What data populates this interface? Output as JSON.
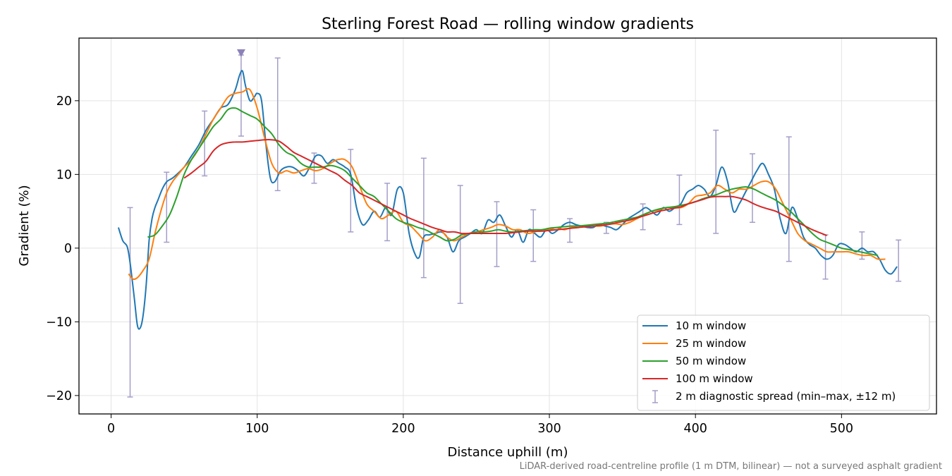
{
  "chart_data": {
    "type": "line",
    "title": "Sterling Forest Road — rolling window gradients",
    "xlabel": "Distance uphill (m)",
    "ylabel": "Gradient (%)",
    "xlim": [
      -22,
      565
    ],
    "ylim": [
      -22.5,
      28.5
    ],
    "xticks": [
      0,
      100,
      200,
      300,
      400,
      500
    ],
    "yticks": [
      -20,
      -10,
      0,
      10,
      20
    ],
    "grid": true,
    "legend_position": "lower-right",
    "footnote": "LiDAR-derived road-centreline profile (1 m DTM, bilinear) — not a surveyed asphalt gradient",
    "series": [
      {
        "name": "10 m window",
        "color": "#1f77b4",
        "x": [
          5,
          8,
          11,
          13,
          16,
          18,
          20,
          22,
          24,
          26,
          28,
          30,
          32,
          35,
          38,
          42,
          46,
          50,
          55,
          60,
          65,
          70,
          75,
          80,
          85,
          88,
          90,
          92,
          95,
          98,
          100,
          103,
          106,
          109,
          112,
          116,
          120,
          124,
          128,
          132,
          136,
          140,
          144,
          148,
          152,
          156,
          160,
          164,
          168,
          172,
          176,
          180,
          184,
          188,
          192,
          196,
          200,
          204,
          208,
          211,
          214,
          218,
          222,
          226,
          230,
          234,
          238,
          242,
          246,
          250,
          254,
          258,
          262,
          266,
          270,
          274,
          278,
          282,
          286,
          290,
          294,
          298,
          302,
          306,
          310,
          314,
          318,
          322,
          326,
          330,
          334,
          338,
          342,
          346,
          350,
          354,
          358,
          362,
          366,
          370,
          374,
          378,
          382,
          386,
          390,
          394,
          398,
          402,
          406,
          410,
          414,
          418,
          422,
          426,
          430,
          434,
          438,
          442,
          446,
          450,
          454,
          458,
          462,
          466,
          470,
          474,
          478,
          482,
          486,
          490,
          494,
          498,
          502,
          506,
          510,
          514,
          518,
          522,
          526,
          530,
          534,
          538
        ],
        "values": [
          2.8,
          1,
          0.2,
          -2,
          -7,
          -10.5,
          -10.8,
          -9,
          -5,
          1,
          4,
          5.5,
          6.5,
          8,
          9,
          9.5,
          10.2,
          11,
          12.5,
          14,
          16,
          17.5,
          19,
          19.5,
          21.5,
          23.5,
          24,
          22,
          20,
          20.5,
          21,
          20,
          14,
          9.5,
          9,
          10.5,
          11,
          11,
          10.5,
          9.8,
          11,
          12.5,
          12.5,
          11.5,
          12,
          11.5,
          11,
          10,
          5.5,
          3.2,
          3.8,
          5,
          4.2,
          5.5,
          4.5,
          8,
          7.5,
          2,
          -0.8,
          -1.2,
          1.5,
          1.8,
          2,
          2.2,
          1.5,
          -0.5,
          1,
          1.5,
          2,
          2.5,
          2,
          3.8,
          3.5,
          4.5,
          3,
          1.5,
          2.5,
          0.8,
          2.5,
          2,
          1.5,
          2.5,
          2,
          2.5,
          3.2,
          3.5,
          3.2,
          3,
          2.8,
          2.8,
          3.2,
          3,
          2.8,
          2.5,
          3.2,
          4,
          4.5,
          5,
          5.5,
          5,
          4.5,
          5.5,
          5,
          5.5,
          6,
          7.5,
          8,
          8.5,
          8,
          7,
          8.5,
          11,
          9,
          5,
          6,
          7.5,
          9,
          10.5,
          11.5,
          10,
          8,
          4,
          2,
          5.5,
          4,
          1.5,
          0.5,
          0,
          -1,
          -1.5,
          -1,
          0.5,
          0.5,
          0,
          -0.5,
          0,
          -0.5,
          -0.5,
          -1.5,
          -3,
          -3.5,
          -2.5
        ]
      },
      {
        "name": "25 m window",
        "color": "#ff7f0e",
        "x": [
          12,
          15,
          18,
          22,
          26,
          30,
          34,
          38,
          42,
          46,
          50,
          55,
          60,
          65,
          70,
          75,
          80,
          85,
          90,
          95,
          100,
          105,
          110,
          115,
          120,
          125,
          130,
          135,
          140,
          145,
          150,
          155,
          160,
          165,
          170,
          175,
          180,
          185,
          190,
          195,
          200,
          205,
          210,
          215,
          220,
          225,
          230,
          235,
          240,
          245,
          250,
          255,
          260,
          265,
          270,
          275,
          280,
          285,
          290,
          295,
          300,
          305,
          310,
          315,
          320,
          325,
          330,
          335,
          340,
          345,
          350,
          355,
          360,
          365,
          370,
          375,
          380,
          385,
          390,
          395,
          400,
          405,
          410,
          415,
          420,
          425,
          430,
          435,
          440,
          445,
          450,
          455,
          460,
          465,
          470,
          475,
          480,
          485,
          490,
          495,
          500,
          505,
          510,
          515,
          520,
          525,
          530
        ],
        "values": [
          -3.5,
          -4.2,
          -4,
          -3,
          -1.5,
          2,
          5,
          7.5,
          9,
          10,
          11,
          12,
          13.5,
          15.5,
          17.5,
          19,
          20.5,
          21,
          21.2,
          21.5,
          19,
          15,
          11.5,
          10.2,
          10.5,
          10.2,
          10.5,
          10.8,
          10.5,
          10.8,
          11.5,
          12,
          12,
          11,
          8.5,
          6,
          5,
          4,
          4.5,
          5,
          3.5,
          3,
          2,
          1,
          1.5,
          2.5,
          1.5,
          1,
          1.5,
          2,
          2.2,
          2.5,
          2.8,
          3.2,
          3,
          2.5,
          2.5,
          2,
          2.2,
          2.5,
          2.5,
          2.8,
          2.5,
          2.8,
          3,
          3,
          3,
          3,
          3.2,
          3.3,
          3.2,
          3.5,
          4,
          4.5,
          5,
          5.2,
          5.5,
          5.5,
          5.5,
          6,
          7,
          7.2,
          7.5,
          8.5,
          8,
          7.5,
          8,
          8,
          8.5,
          9,
          9,
          8,
          6,
          4,
          2,
          1,
          0.5,
          0,
          -0.5,
          -0.5,
          -0.5,
          -0.5,
          -0.8,
          -1,
          -1,
          -1.5,
          -1.5
        ]
      },
      {
        "name": "50 m window",
        "color": "#2ca02c",
        "x": [
          25,
          30,
          35,
          40,
          45,
          50,
          55,
          60,
          65,
          70,
          75,
          80,
          85,
          90,
          95,
          100,
          105,
          110,
          115,
          120,
          125,
          130,
          135,
          140,
          145,
          150,
          155,
          160,
          165,
          170,
          175,
          180,
          185,
          190,
          195,
          200,
          205,
          210,
          215,
          220,
          225,
          230,
          235,
          240,
          245,
          250,
          255,
          260,
          265,
          270,
          275,
          280,
          285,
          290,
          295,
          300,
          305,
          310,
          315,
          320,
          325,
          330,
          335,
          340,
          345,
          350,
          355,
          360,
          365,
          370,
          375,
          380,
          385,
          390,
          395,
          400,
          405,
          410,
          415,
          420,
          425,
          430,
          435,
          440,
          445,
          450,
          455,
          460,
          465,
          470,
          475,
          480,
          485,
          490,
          495,
          500,
          505,
          510,
          515,
          520,
          525
        ],
        "values": [
          1.5,
          1.8,
          3,
          4.5,
          7,
          10,
          12,
          13.5,
          15,
          16.5,
          17.5,
          18.8,
          19,
          18.5,
          18,
          17.5,
          16.5,
          15.5,
          14,
          13,
          12.5,
          11.5,
          11,
          11,
          11,
          11.2,
          11,
          10.5,
          9.5,
          8.5,
          7.5,
          7,
          6,
          5,
          4,
          3.5,
          3.2,
          2.8,
          2.5,
          2,
          1.5,
          1,
          1.2,
          1.8,
          2,
          2.2,
          2.2,
          2.3,
          2.5,
          2.3,
          2.2,
          2.3,
          2.4,
          2.5,
          2.5,
          2.7,
          2.8,
          2.9,
          3,
          3,
          3.1,
          3.2,
          3.3,
          3.4,
          3.6,
          3.8,
          4,
          4.2,
          4.6,
          5,
          5.3,
          5.5,
          5.6,
          5.8,
          6,
          6.3,
          6.7,
          7,
          7.3,
          7.7,
          8,
          8.2,
          8.3,
          8,
          7.5,
          7,
          6.5,
          5.8,
          5,
          4,
          3,
          2,
          1.2,
          0.8,
          0.4,
          0,
          -0.2,
          -0.4,
          -0.6,
          -0.8,
          -1
        ]
      },
      {
        "name": "100 m window",
        "color": "#d62728",
        "x": [
          50,
          55,
          60,
          65,
          70,
          75,
          80,
          85,
          90,
          95,
          100,
          105,
          110,
          115,
          120,
          125,
          130,
          135,
          140,
          145,
          150,
          155,
          160,
          165,
          170,
          175,
          180,
          185,
          190,
          195,
          200,
          205,
          210,
          215,
          220,
          225,
          230,
          235,
          240,
          245,
          250,
          255,
          260,
          265,
          270,
          275,
          280,
          285,
          290,
          295,
          300,
          305,
          310,
          315,
          320,
          325,
          330,
          335,
          340,
          345,
          350,
          355,
          360,
          365,
          370,
          375,
          380,
          385,
          390,
          395,
          400,
          405,
          410,
          415,
          420,
          425,
          430,
          435,
          440,
          445,
          450,
          455,
          460,
          465,
          470,
          475,
          480,
          485,
          490
        ],
        "values": [
          9.5,
          10.2,
          11,
          11.8,
          13.2,
          14,
          14.3,
          14.4,
          14.4,
          14.5,
          14.6,
          14.7,
          14.7,
          14.5,
          13.8,
          13,
          12.5,
          12,
          11.5,
          11,
          10.5,
          10,
          9.2,
          8.5,
          7.5,
          7,
          6.5,
          6,
          5.5,
          5,
          4.5,
          4,
          3.6,
          3.2,
          2.8,
          2.5,
          2.2,
          2.2,
          2,
          2,
          2,
          2,
          2,
          2,
          2,
          2.1,
          2.2,
          2.3,
          2.3,
          2.3,
          2.4,
          2.5,
          2.6,
          2.7,
          2.8,
          2.9,
          3,
          3.1,
          3.2,
          3.4,
          3.6,
          3.8,
          4.1,
          4.4,
          4.7,
          5,
          5.2,
          5.4,
          5.6,
          6,
          6.3,
          6.6,
          6.9,
          7,
          7,
          7,
          6.8,
          6.5,
          6,
          5.6,
          5.3,
          5,
          4.5,
          4,
          3.5,
          3,
          2.5,
          2.1,
          1.7
        ]
      }
    ],
    "error_bars": {
      "name": "2 m diagnostic spread (min–max, ±12 m)",
      "color": "#a39ec9",
      "x": [
        13,
        38,
        64,
        89,
        114,
        139,
        164,
        189,
        214,
        239,
        264,
        289,
        314,
        339,
        364,
        389,
        414,
        439,
        464,
        489,
        514,
        539
      ],
      "low": [
        -20.2,
        0.8,
        9.8,
        15.2,
        7.8,
        8.8,
        2.2,
        1,
        -4,
        -7.5,
        -2.5,
        -1.8,
        0.8,
        2,
        2.5,
        3.2,
        2,
        3.5,
        -1.8,
        -4.2,
        -1.5,
        -4.5
      ],
      "high": [
        5.5,
        10.3,
        18.6,
        26.2,
        25.8,
        12.9,
        13.4,
        8.8,
        12.2,
        8.5,
        6.3,
        5.2,
        4,
        3.5,
        6,
        9.9,
        16,
        12.8,
        15.1,
        1.8,
        2.2,
        1.1
      ]
    },
    "peak_marker": {
      "x": 89,
      "y": 26.5,
      "color": "#8c82b8"
    }
  }
}
